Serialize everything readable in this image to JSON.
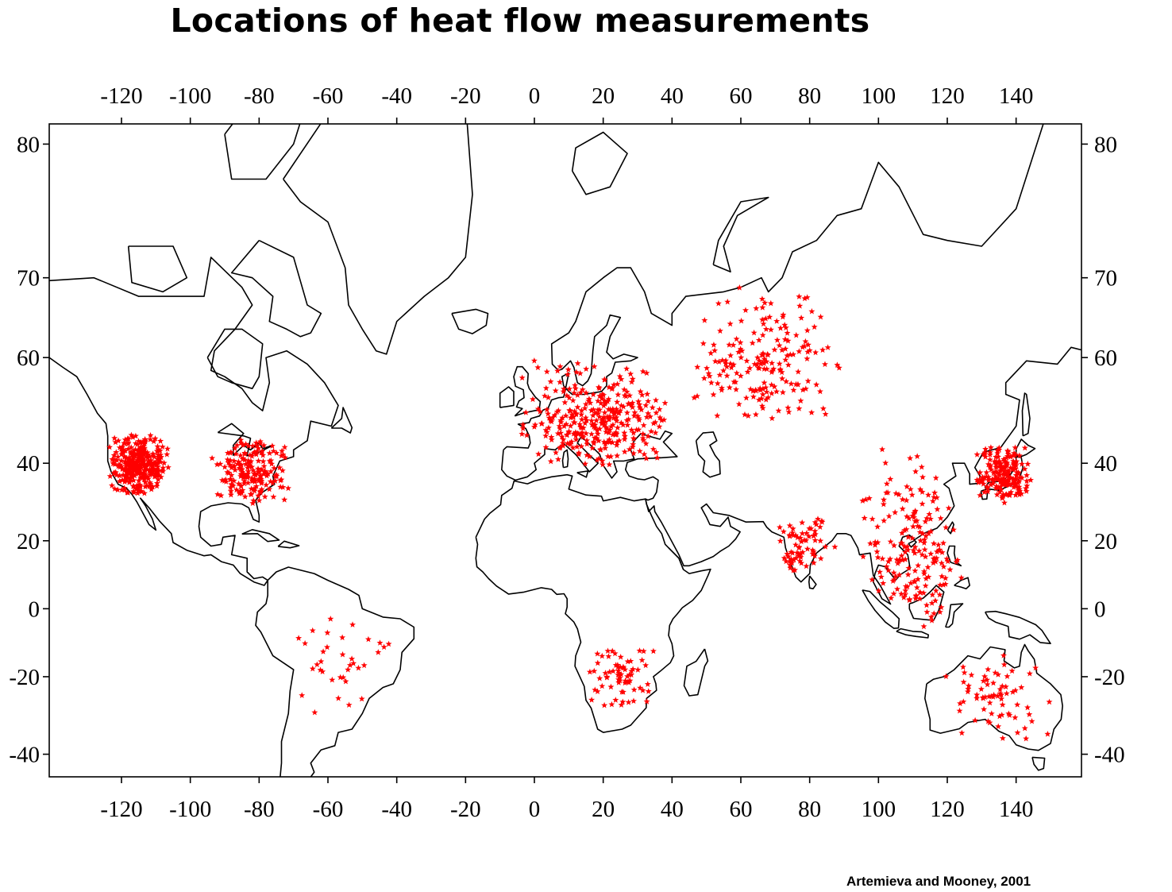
{
  "title": "Locations of heat flow measurements",
  "credit": "Artemieva and Mooney, 2001",
  "map": {
    "projection": "mercator",
    "lon_range": [
      -141,
      159
    ],
    "lat_range": [
      -45,
      81
    ],
    "lon_ticks": [
      "-120",
      "-100",
      "-80",
      "-60",
      "-40",
      "-20",
      "0",
      "20",
      "40",
      "60",
      "80",
      "100",
      "120",
      "140"
    ],
    "lat_ticks": [
      "80",
      "70",
      "60",
      "40",
      "20",
      "0",
      "-20",
      "-40"
    ],
    "coastline_color": "#000000",
    "marker_color": "#ff0000",
    "marker_symbol": "star",
    "measurement_clusters": [
      {
        "region": "Western USA",
        "lon": [
          -124,
          -106
        ],
        "lat": [
          32,
          47
        ],
        "density": "very high"
      },
      {
        "region": "Eastern USA",
        "lon": [
          -95,
          -70
        ],
        "lat": [
          30,
          46
        ],
        "density": "high"
      },
      {
        "region": "Europe",
        "lon": [
          -5,
          40
        ],
        "lat": [
          38,
          60
        ],
        "density": "very high"
      },
      {
        "region": "Russia / Siberia",
        "lon": [
          45,
          90
        ],
        "lat": [
          48,
          70
        ],
        "density": "high"
      },
      {
        "region": "China and SE Asia",
        "lon": [
          95,
          125
        ],
        "lat": [
          -8,
          45
        ],
        "density": "high"
      },
      {
        "region": "Japan",
        "lon": [
          128,
          145
        ],
        "lat": [
          30,
          45
        ],
        "density": "high"
      },
      {
        "region": "Southern Africa",
        "lon": [
          15,
          35
        ],
        "lat": [
          -30,
          -10
        ],
        "density": "medium"
      },
      {
        "region": "Australia",
        "lon": [
          115,
          153
        ],
        "lat": [
          -38,
          -12
        ],
        "density": "medium"
      },
      {
        "region": "South America",
        "lon": [
          -80,
          -40
        ],
        "lat": [
          -32,
          2
        ],
        "density": "low"
      },
      {
        "region": "India",
        "lon": [
          70,
          88
        ],
        "lat": [
          10,
          28
        ],
        "density": "medium"
      }
    ]
  }
}
